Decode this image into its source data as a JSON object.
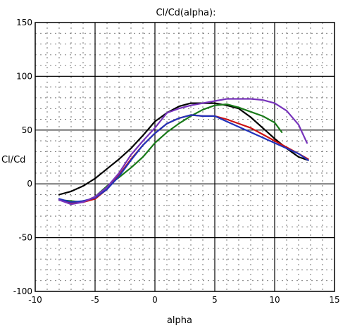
{
  "chart_data": {
    "type": "line",
    "title": "Cl/Cd(alpha):",
    "xlabel": "alpha",
    "ylabel": "Cl/Cd",
    "xlim": [
      -10,
      15
    ],
    "ylim": [
      -100,
      150
    ],
    "x_ticks": [
      "-10",
      "-5",
      "0",
      "5",
      "10",
      "15"
    ],
    "y_ticks": [
      "150",
      "100",
      "50",
      "0",
      "-50",
      "-100"
    ],
    "grid": true,
    "legend": "none",
    "series": [
      {
        "color": "#000000",
        "points": [
          [
            -8,
            -10
          ],
          [
            -7,
            -7
          ],
          [
            -6,
            -2
          ],
          [
            -5,
            5
          ],
          [
            -4,
            14
          ],
          [
            -3,
            23
          ],
          [
            -2,
            33
          ],
          [
            -1,
            45
          ],
          [
            0,
            58
          ],
          [
            1,
            66
          ],
          [
            2,
            72
          ],
          [
            3,
            75
          ],
          [
            4,
            75
          ],
          [
            5,
            75
          ],
          [
            6,
            73
          ],
          [
            7,
            70
          ],
          [
            8,
            62
          ],
          [
            9,
            52
          ],
          [
            10,
            42
          ],
          [
            11,
            33
          ],
          [
            12,
            25
          ],
          [
            12.8,
            22
          ]
        ]
      },
      {
        "color": "#1a7a1a",
        "points": [
          [
            -8,
            -15
          ],
          [
            -7,
            -16
          ],
          [
            -6,
            -17
          ],
          [
            -5,
            -12
          ],
          [
            -4,
            -2
          ],
          [
            -3,
            6
          ],
          [
            -2,
            15
          ],
          [
            -1,
            25
          ],
          [
            0,
            38
          ],
          [
            1,
            48
          ],
          [
            2,
            56
          ],
          [
            3,
            63
          ],
          [
            4,
            69
          ],
          [
            5,
            73
          ],
          [
            6,
            74
          ],
          [
            7,
            71
          ],
          [
            8,
            67
          ],
          [
            9,
            63
          ],
          [
            10,
            57
          ],
          [
            10.6,
            48
          ]
        ]
      },
      {
        "color": "#cc1111",
        "points": [
          [
            -8,
            -14
          ],
          [
            -7,
            -18
          ],
          [
            -6,
            -17
          ],
          [
            -5,
            -14
          ],
          [
            -4,
            -5
          ],
          [
            -3,
            8
          ],
          [
            -2,
            23
          ],
          [
            -1,
            36
          ],
          [
            0,
            47
          ],
          [
            1,
            56
          ],
          [
            2,
            61
          ],
          [
            3,
            64
          ],
          [
            4,
            63
          ],
          [
            5,
            63
          ],
          [
            6,
            60
          ],
          [
            7,
            56
          ],
          [
            8,
            52
          ],
          [
            9,
            46
          ],
          [
            10,
            40
          ],
          [
            11,
            34
          ],
          [
            12,
            28
          ],
          [
            12.8,
            23
          ]
        ]
      },
      {
        "color": "#2233bb",
        "points": [
          [
            -8,
            -14
          ],
          [
            -7,
            -17
          ],
          [
            -6,
            -16
          ],
          [
            -5,
            -13
          ],
          [
            -4,
            -5
          ],
          [
            -3,
            7
          ],
          [
            -2,
            22
          ],
          [
            -1,
            36
          ],
          [
            0,
            47
          ],
          [
            1,
            56
          ],
          [
            2,
            61
          ],
          [
            3,
            64
          ],
          [
            4,
            63
          ],
          [
            5,
            63
          ],
          [
            6,
            58
          ],
          [
            7,
            53
          ],
          [
            8,
            48
          ],
          [
            9,
            43
          ],
          [
            10,
            38
          ],
          [
            11,
            33
          ],
          [
            12,
            28
          ],
          [
            12.8,
            22
          ]
        ]
      },
      {
        "color": "#7733bb",
        "points": [
          [
            -8,
            -15
          ],
          [
            -7,
            -19
          ],
          [
            -6,
            -17
          ],
          [
            -5,
            -12
          ],
          [
            -4,
            -3
          ],
          [
            -3,
            10
          ],
          [
            -2,
            27
          ],
          [
            -1,
            40
          ],
          [
            0,
            52
          ],
          [
            1,
            66
          ],
          [
            2,
            70
          ],
          [
            3,
            73
          ],
          [
            4,
            75
          ],
          [
            5,
            77
          ],
          [
            6,
            79
          ],
          [
            7,
            79
          ],
          [
            8,
            79
          ],
          [
            9,
            78
          ],
          [
            10,
            75
          ],
          [
            11,
            68
          ],
          [
            12,
            55
          ],
          [
            12.7,
            38
          ]
        ]
      }
    ]
  }
}
